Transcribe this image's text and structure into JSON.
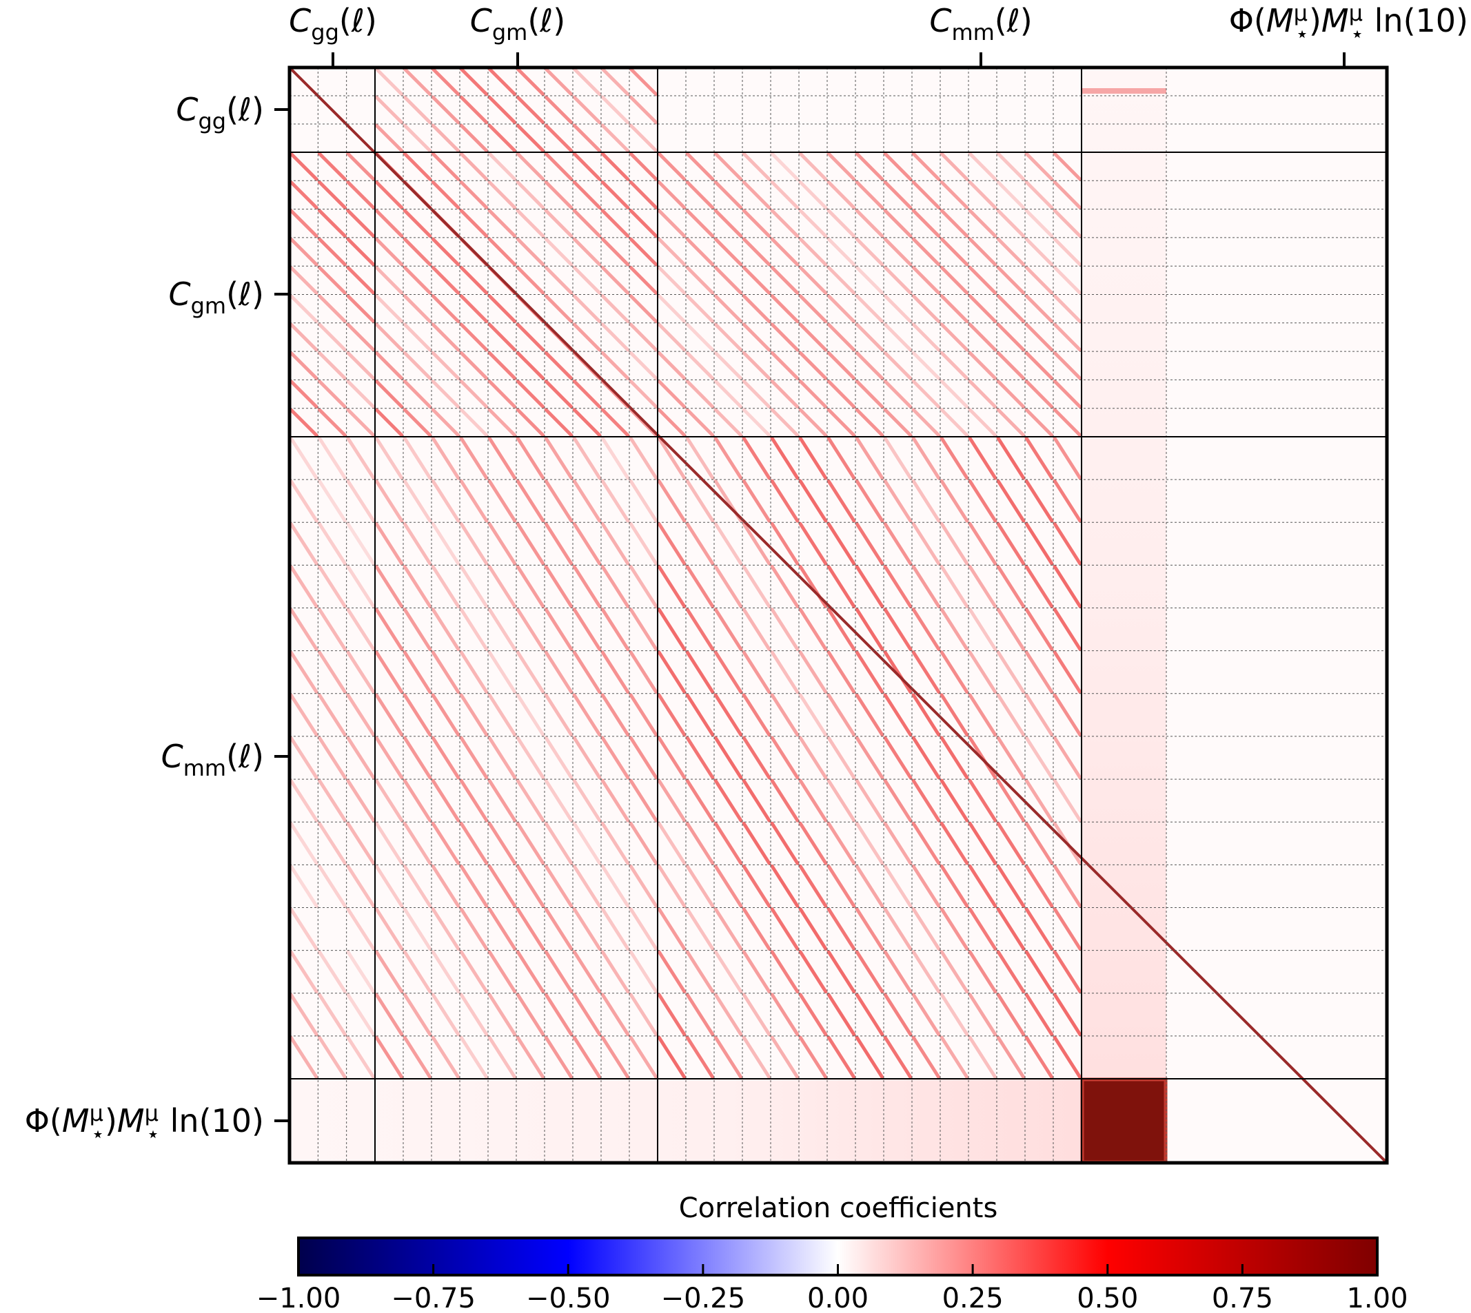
{
  "chart_data": {
    "type": "heatmap",
    "title": "",
    "colorbar": {
      "label": "Correlation coefficients",
      "range": [
        -1.0,
        1.0
      ],
      "ticks": [
        -1.0,
        -0.75,
        -0.5,
        -0.25,
        0.0,
        0.25,
        0.5,
        0.75,
        1.0
      ],
      "tick_labels": [
        "−1.00",
        "−0.75",
        "−0.50",
        "−0.25",
        "0.00",
        "0.25",
        "0.50",
        "0.75",
        "1.00"
      ],
      "orientation": "horizontal",
      "colormap": "seismic",
      "colors": {
        "min": "#00004c",
        "mid": "#ffffff",
        "max": "#7f0000"
      }
    },
    "blocks": [
      {
        "key": "Cgg",
        "main": "C",
        "sub": "gg",
        "tail": "(ℓ)",
        "nbins": 3
      },
      {
        "key": "Cgm",
        "main": "C",
        "sub": "gm",
        "tail": "(ℓ)",
        "nbins": 10
      },
      {
        "key": "Cmm",
        "main": "C",
        "sub": "mm",
        "tail": "(ℓ)",
        "nbins": 15
      },
      {
        "key": "SMF",
        "label_parts": [
          "Φ(",
          "M",
          "μ",
          "⋆",
          ")",
          "M",
          "μ",
          "⋆",
          " ln(10)"
        ],
        "nbins": 1
      }
    ],
    "gridlines": {
      "block_boundaries": "solid",
      "bin_boundaries": "dashed"
    },
    "features": {
      "diagonal_correlation": 1.0,
      "smf_block_correlation": 0.95,
      "off_diagonal_typical_max": 0.5,
      "negative_values_present": false
    }
  }
}
